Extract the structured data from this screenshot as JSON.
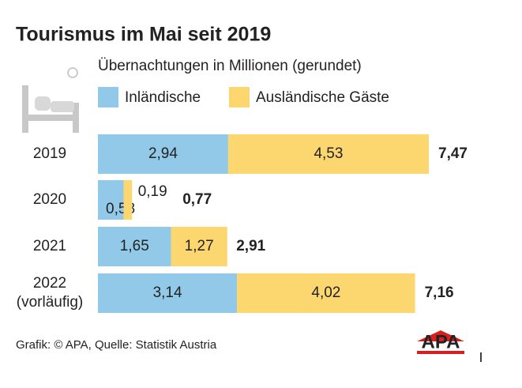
{
  "chart_data": {
    "type": "stacked-bar-horizontal",
    "title": "Tourismus im Mai seit 2019",
    "subtitle": "Übernachtungen in Millionen (gerundet)",
    "categories": [
      "2019",
      "2020",
      "2021",
      "2022\n(vorläufig)"
    ],
    "series": [
      {
        "name": "Inländische",
        "color": "#93c9e8",
        "values": [
          2.94,
          0.58,
          1.65,
          3.14
        ],
        "value_labels": [
          "2,94",
          "0,58",
          "1,65",
          "3,14"
        ]
      },
      {
        "name": "Ausländische Gäste",
        "color": "#fcd66e",
        "values": [
          4.53,
          0.19,
          1.27,
          4.02
        ],
        "value_labels": [
          "4,53",
          "0,19",
          "1,27",
          "4,02"
        ]
      }
    ],
    "totals": [
      7.47,
      0.77,
      2.91,
      7.16
    ],
    "total_labels": [
      "7,47",
      "0,77",
      "2,91",
      "7,16"
    ],
    "source": "Grafik: © APA, Quelle: Statistik Austria",
    "logo": "APA"
  }
}
